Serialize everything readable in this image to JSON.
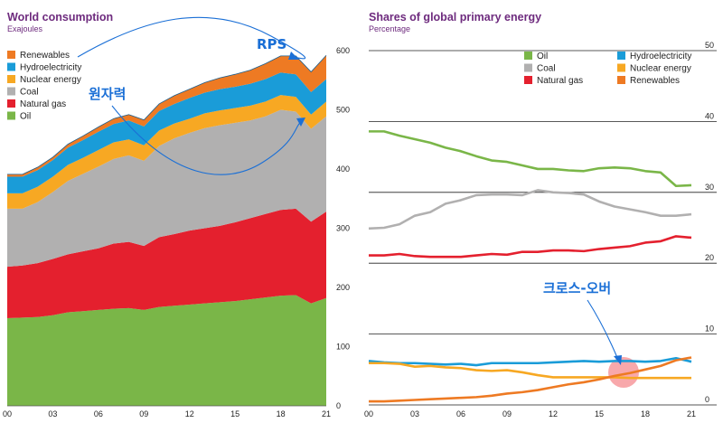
{
  "chart_data": [
    {
      "type": "area",
      "title": "World consumption",
      "subtitle": "Exajoules",
      "x_tick_labels": [
        "00",
        "03",
        "06",
        "09",
        "12",
        "15",
        "18",
        "21"
      ],
      "y_tick_labels": [
        "0",
        "100",
        "200",
        "300",
        "400",
        "500",
        "600"
      ],
      "ylim": [
        0,
        600
      ],
      "grid": false,
      "legend_position": "top-left",
      "x": [
        2000,
        2001,
        2002,
        2003,
        2004,
        2005,
        2006,
        2007,
        2008,
        2009,
        2010,
        2011,
        2012,
        2013,
        2014,
        2015,
        2016,
        2017,
        2018,
        2019,
        2020,
        2021
      ],
      "series": [
        {
          "name": "Oil",
          "color": "#7ab648",
          "values": [
            148,
            149,
            150,
            153,
            158,
            160,
            162,
            164,
            165,
            162,
            167,
            169,
            171,
            173,
            175,
            177,
            180,
            183,
            186,
            187,
            173,
            182
          ]
        },
        {
          "name": "Natural gas",
          "color": "#e4202e",
          "values": [
            87,
            88,
            91,
            95,
            98,
            101,
            104,
            110,
            112,
            108,
            118,
            121,
            125,
            127,
            129,
            133,
            137,
            141,
            145,
            146,
            138,
            146
          ]
        },
        {
          "name": "Coal",
          "color": "#b1b0b0",
          "values": [
            98,
            96,
            103,
            113,
            124,
            131,
            138,
            143,
            146,
            144,
            154,
            162,
            165,
            169,
            170,
            168,
            165,
            165,
            169,
            164,
            157,
            161
          ]
        },
        {
          "name": "Nuclear energy",
          "color": "#f7a823",
          "values": [
            26,
            26,
            26,
            26,
            27,
            27,
            28,
            28,
            27,
            26,
            26,
            25,
            24,
            25,
            25,
            25,
            25,
            25,
            25,
            25,
            24,
            25
          ]
        },
        {
          "name": "Hydroelectricity",
          "color": "#1a9cd8",
          "values": [
            28,
            28,
            28,
            28,
            29,
            30,
            31,
            31,
            32,
            32,
            33,
            33,
            35,
            35,
            36,
            36,
            37,
            38,
            38,
            38,
            38,
            38
          ]
        },
        {
          "name": "Renewables",
          "color": "#ee7a23",
          "values": [
            4,
            4,
            5,
            5,
            6,
            7,
            8,
            9,
            10,
            11,
            12,
            14,
            15,
            17,
            19,
            21,
            23,
            26,
            28,
            31,
            34,
            40
          ]
        }
      ],
      "annotations": [
        {
          "text": "RPS",
          "color": "#1a6fd6"
        },
        {
          "text": "원자력",
          "color": "#1a6fd6"
        }
      ]
    },
    {
      "type": "line",
      "title": "Shares of global primary energy",
      "subtitle": "Percentage",
      "x_tick_labels": [
        "00",
        "03",
        "06",
        "09",
        "12",
        "15",
        "18",
        "21"
      ],
      "y_tick_labels": [
        "0",
        "10",
        "20",
        "30",
        "40",
        "50"
      ],
      "ylim": [
        0,
        50
      ],
      "grid": true,
      "legend_position": "top",
      "x": [
        2000,
        2001,
        2002,
        2003,
        2004,
        2005,
        2006,
        2007,
        2008,
        2009,
        2010,
        2011,
        2012,
        2013,
        2014,
        2015,
        2016,
        2017,
        2018,
        2019,
        2020,
        2021
      ],
      "series": [
        {
          "name": "Oil",
          "color": "#7ab648",
          "values": [
            38.6,
            38.6,
            38.0,
            37.5,
            37.0,
            36.3,
            35.8,
            35.1,
            34.5,
            34.3,
            33.8,
            33.3,
            33.3,
            33.1,
            33.0,
            33.4,
            33.5,
            33.4,
            33.0,
            32.8,
            30.9,
            31.0
          ]
        },
        {
          "name": "Coal",
          "color": "#b1b0b0",
          "values": [
            24.9,
            25.0,
            25.5,
            26.7,
            27.2,
            28.4,
            28.9,
            29.6,
            29.7,
            29.7,
            29.6,
            30.3,
            30.0,
            29.9,
            29.7,
            28.7,
            28.0,
            27.6,
            27.2,
            26.7,
            26.7,
            26.9
          ]
        },
        {
          "name": "Natural gas",
          "color": "#e4202e",
          "values": [
            21.1,
            21.1,
            21.3,
            21.0,
            20.9,
            20.9,
            20.9,
            21.1,
            21.3,
            21.2,
            21.6,
            21.6,
            21.8,
            21.8,
            21.7,
            22.0,
            22.2,
            22.4,
            22.9,
            23.1,
            23.8,
            23.6
          ]
        },
        {
          "name": "Hydroelectricity",
          "color": "#1a9cd8",
          "values": [
            6.2,
            6.0,
            5.9,
            5.9,
            5.8,
            5.7,
            5.8,
            5.6,
            5.9,
            5.9,
            5.9,
            5.9,
            6.0,
            6.1,
            6.2,
            6.1,
            6.2,
            6.2,
            6.1,
            6.2,
            6.6,
            6.1
          ]
        },
        {
          "name": "Nuclear energy",
          "color": "#f7a823",
          "values": [
            5.9,
            5.9,
            5.8,
            5.4,
            5.5,
            5.3,
            5.2,
            4.9,
            4.8,
            4.9,
            4.6,
            4.2,
            3.9,
            3.9,
            3.9,
            3.9,
            3.9,
            3.8,
            3.8,
            3.8,
            3.8,
            3.8
          ]
        },
        {
          "name": "Renewables",
          "color": "#ee7a23",
          "values": [
            0.5,
            0.5,
            0.6,
            0.7,
            0.8,
            0.9,
            1.0,
            1.1,
            1.3,
            1.6,
            1.8,
            2.1,
            2.5,
            2.9,
            3.2,
            3.6,
            4.1,
            4.5,
            5.0,
            5.5,
            6.3,
            6.7
          ]
        }
      ],
      "annotations": [
        {
          "text": "크로스-오버",
          "color": "#1a6fd6"
        }
      ]
    }
  ]
}
